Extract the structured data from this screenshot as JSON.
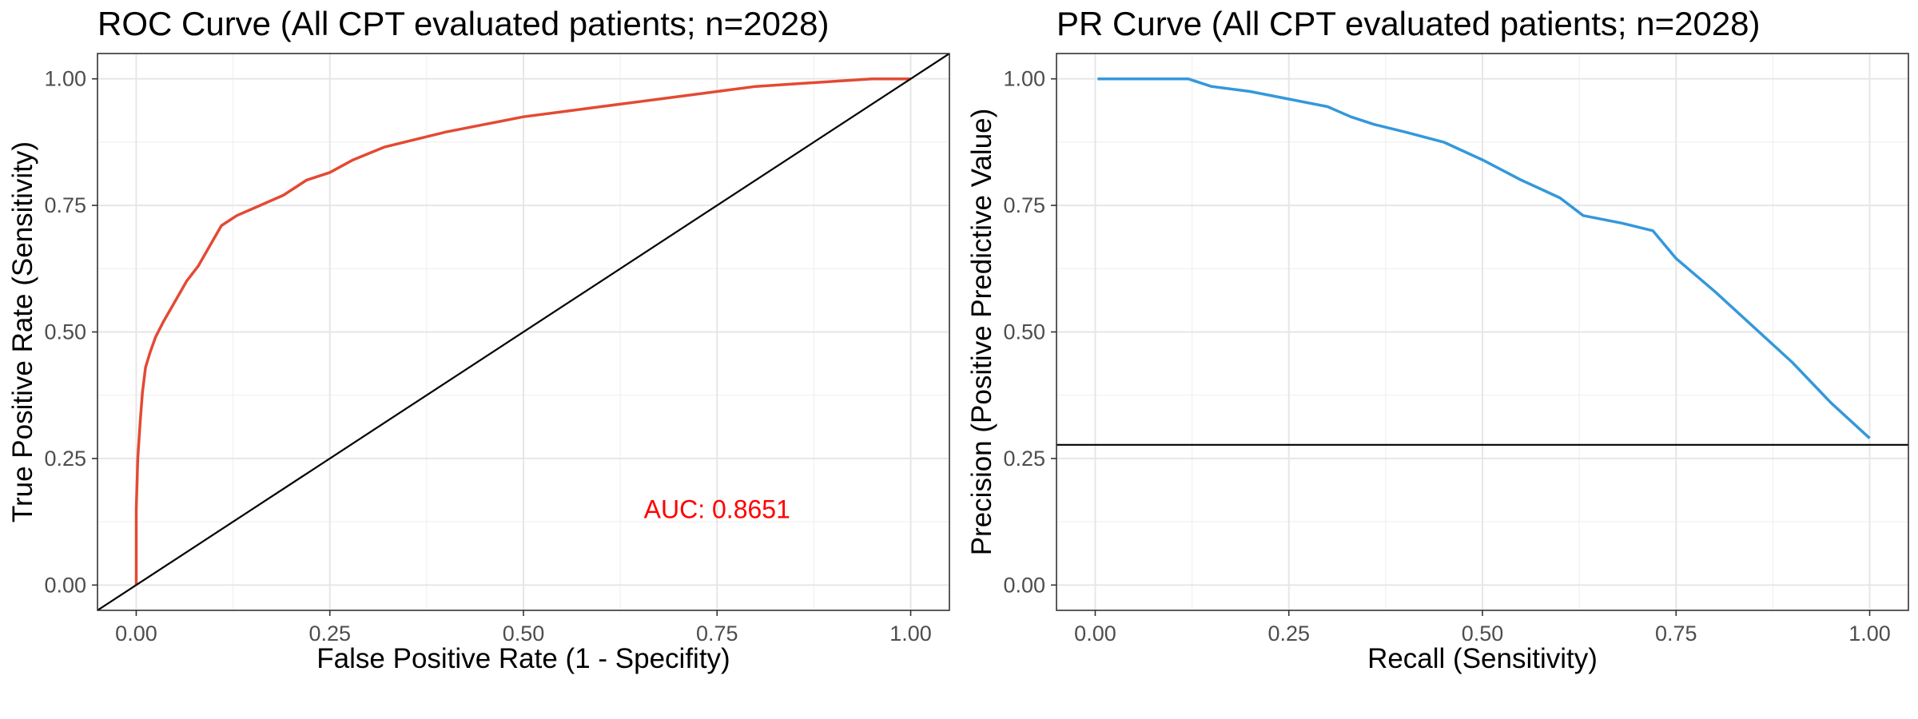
{
  "chart_data": [
    {
      "type": "line",
      "title": "ROC Curve (All CPT evaluated patients; n=2028)",
      "xlabel": "False Positive Rate (1 - Specifity)",
      "ylabel": "True Positive Rate (Sensitivity)",
      "xlim": [
        -0.05,
        1.05
      ],
      "ylim": [
        -0.05,
        1.05
      ],
      "xticks": [
        0.0,
        0.25,
        0.5,
        0.75,
        1.0
      ],
      "yticks": [
        0.0,
        0.25,
        0.5,
        0.75,
        1.0
      ],
      "xtick_labels": [
        "0.00",
        "0.25",
        "0.50",
        "0.75",
        "1.00"
      ],
      "ytick_labels": [
        "0.00",
        "0.25",
        "0.50",
        "0.75",
        "1.00"
      ],
      "grid": true,
      "series": [
        {
          "color": "#e34a33",
          "x": [
            0.0,
            0.0,
            0.002,
            0.005,
            0.008,
            0.012,
            0.018,
            0.025,
            0.035,
            0.05,
            0.065,
            0.08,
            0.095,
            0.11,
            0.13,
            0.16,
            0.19,
            0.22,
            0.25,
            0.28,
            0.32,
            0.36,
            0.4,
            0.45,
            0.5,
            0.55,
            0.6,
            0.65,
            0.7,
            0.75,
            0.8,
            0.85,
            0.9,
            0.95,
            1.0
          ],
          "y": [
            0.0,
            0.15,
            0.25,
            0.32,
            0.38,
            0.43,
            0.46,
            0.49,
            0.52,
            0.56,
            0.6,
            0.63,
            0.67,
            0.71,
            0.73,
            0.75,
            0.77,
            0.8,
            0.815,
            0.84,
            0.865,
            0.88,
            0.895,
            0.91,
            0.925,
            0.935,
            0.945,
            0.955,
            0.965,
            0.975,
            0.985,
            0.99,
            0.995,
            1.0,
            1.0
          ]
        },
        {
          "color": "#000000",
          "x": [
            -0.05,
            1.05
          ],
          "y": [
            -0.05,
            1.05
          ]
        }
      ],
      "annotations": [
        {
          "text": "AUC: 0.8651",
          "x": 0.75,
          "y": 0.15,
          "color": "#ff0000"
        }
      ]
    },
    {
      "type": "line",
      "title": "PR Curve (All CPT evaluated patients; n=2028)",
      "xlabel": "Recall (Sensitivity)",
      "ylabel": "Precision (Positive Predictive Value)",
      "xlim": [
        -0.05,
        1.05
      ],
      "ylim": [
        -0.05,
        1.05
      ],
      "xticks": [
        0.0,
        0.25,
        0.5,
        0.75,
        1.0
      ],
      "yticks": [
        0.0,
        0.25,
        0.5,
        0.75,
        1.0
      ],
      "xtick_labels": [
        "0.00",
        "0.25",
        "0.50",
        "0.75",
        "1.00"
      ],
      "ytick_labels": [
        "0.00",
        "0.25",
        "0.50",
        "0.75",
        "1.00"
      ],
      "grid": true,
      "series": [
        {
          "color": "#3498db",
          "x": [
            0.003,
            0.05,
            0.12,
            0.15,
            0.2,
            0.25,
            0.3,
            0.33,
            0.36,
            0.4,
            0.45,
            0.5,
            0.55,
            0.6,
            0.63,
            0.68,
            0.72,
            0.75,
            0.8,
            0.85,
            0.9,
            0.95,
            1.0
          ],
          "y": [
            1.0,
            1.0,
            1.0,
            0.985,
            0.975,
            0.96,
            0.945,
            0.925,
            0.91,
            0.895,
            0.875,
            0.84,
            0.8,
            0.765,
            0.73,
            0.715,
            0.7,
            0.645,
            0.58,
            0.51,
            0.44,
            0.36,
            0.29
          ]
        }
      ],
      "hlines": [
        {
          "y": 0.277,
          "color": "#000000"
        }
      ]
    }
  ]
}
